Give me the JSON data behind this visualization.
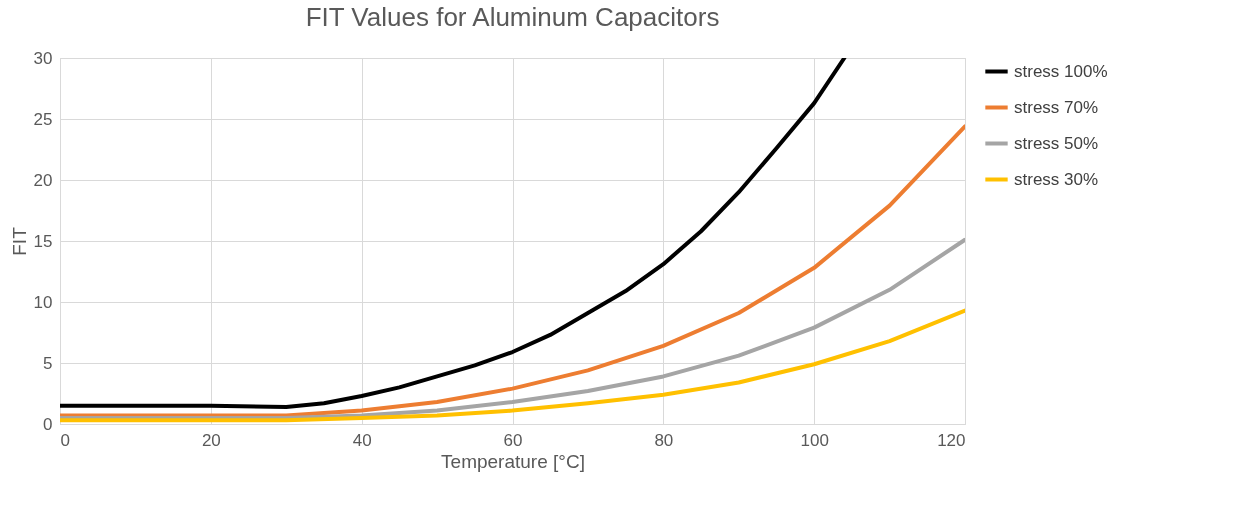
{
  "chart_data": {
    "type": "line",
    "title": "FIT Values for Aluminum Capacitors",
    "xlabel": "Temperature [°C]",
    "ylabel": "FIT",
    "xlim": [
      0,
      120
    ],
    "xticks": [
      0,
      20,
      40,
      60,
      80,
      100,
      120
    ],
    "ylim": [
      0,
      30
    ],
    "yticks": [
      0,
      5,
      10,
      15,
      20,
      25,
      30
    ],
    "grid": true,
    "legend": "right",
    "marker": "none",
    "line_style": "solid",
    "series": [
      {
        "name": "stress 100%",
        "color": "#000000",
        "x": [
          0,
          10,
          20,
          30,
          35,
          40,
          45,
          50,
          55,
          60,
          65,
          70,
          75,
          80,
          85,
          90,
          95,
          100,
          104
        ],
        "values": [
          1.5,
          1.5,
          1.5,
          1.4,
          1.7,
          2.3,
          3.0,
          3.9,
          4.8,
          5.9,
          7.3,
          9.1,
          10.9,
          13.1,
          15.8,
          19.0,
          22.6,
          26.3,
          30
        ]
      },
      {
        "name": "stress 70%",
        "color": "#ed7d31",
        "x": [
          0,
          10,
          20,
          30,
          40,
          50,
          60,
          70,
          80,
          90,
          100,
          110,
          120
        ],
        "values": [
          0.7,
          0.7,
          0.7,
          0.7,
          1.1,
          1.8,
          2.9,
          4.4,
          6.4,
          9.1,
          12.8,
          17.9,
          24.4
        ]
      },
      {
        "name": "stress 50%",
        "color": "#a5a5a5",
        "x": [
          0,
          10,
          20,
          30,
          40,
          50,
          60,
          70,
          80,
          90,
          100,
          110,
          120
        ],
        "values": [
          0.5,
          0.5,
          0.5,
          0.5,
          0.7,
          1.1,
          1.8,
          2.7,
          3.9,
          5.6,
          7.9,
          11.0,
          15.1
        ]
      },
      {
        "name": "stress 30%",
        "color": "#ffc000",
        "x": [
          0,
          10,
          20,
          30,
          40,
          50,
          60,
          70,
          80,
          90,
          100,
          110,
          120
        ],
        "values": [
          0.3,
          0.3,
          0.3,
          0.3,
          0.5,
          0.7,
          1.1,
          1.7,
          2.4,
          3.4,
          4.9,
          6.8,
          9.3
        ]
      }
    ]
  }
}
